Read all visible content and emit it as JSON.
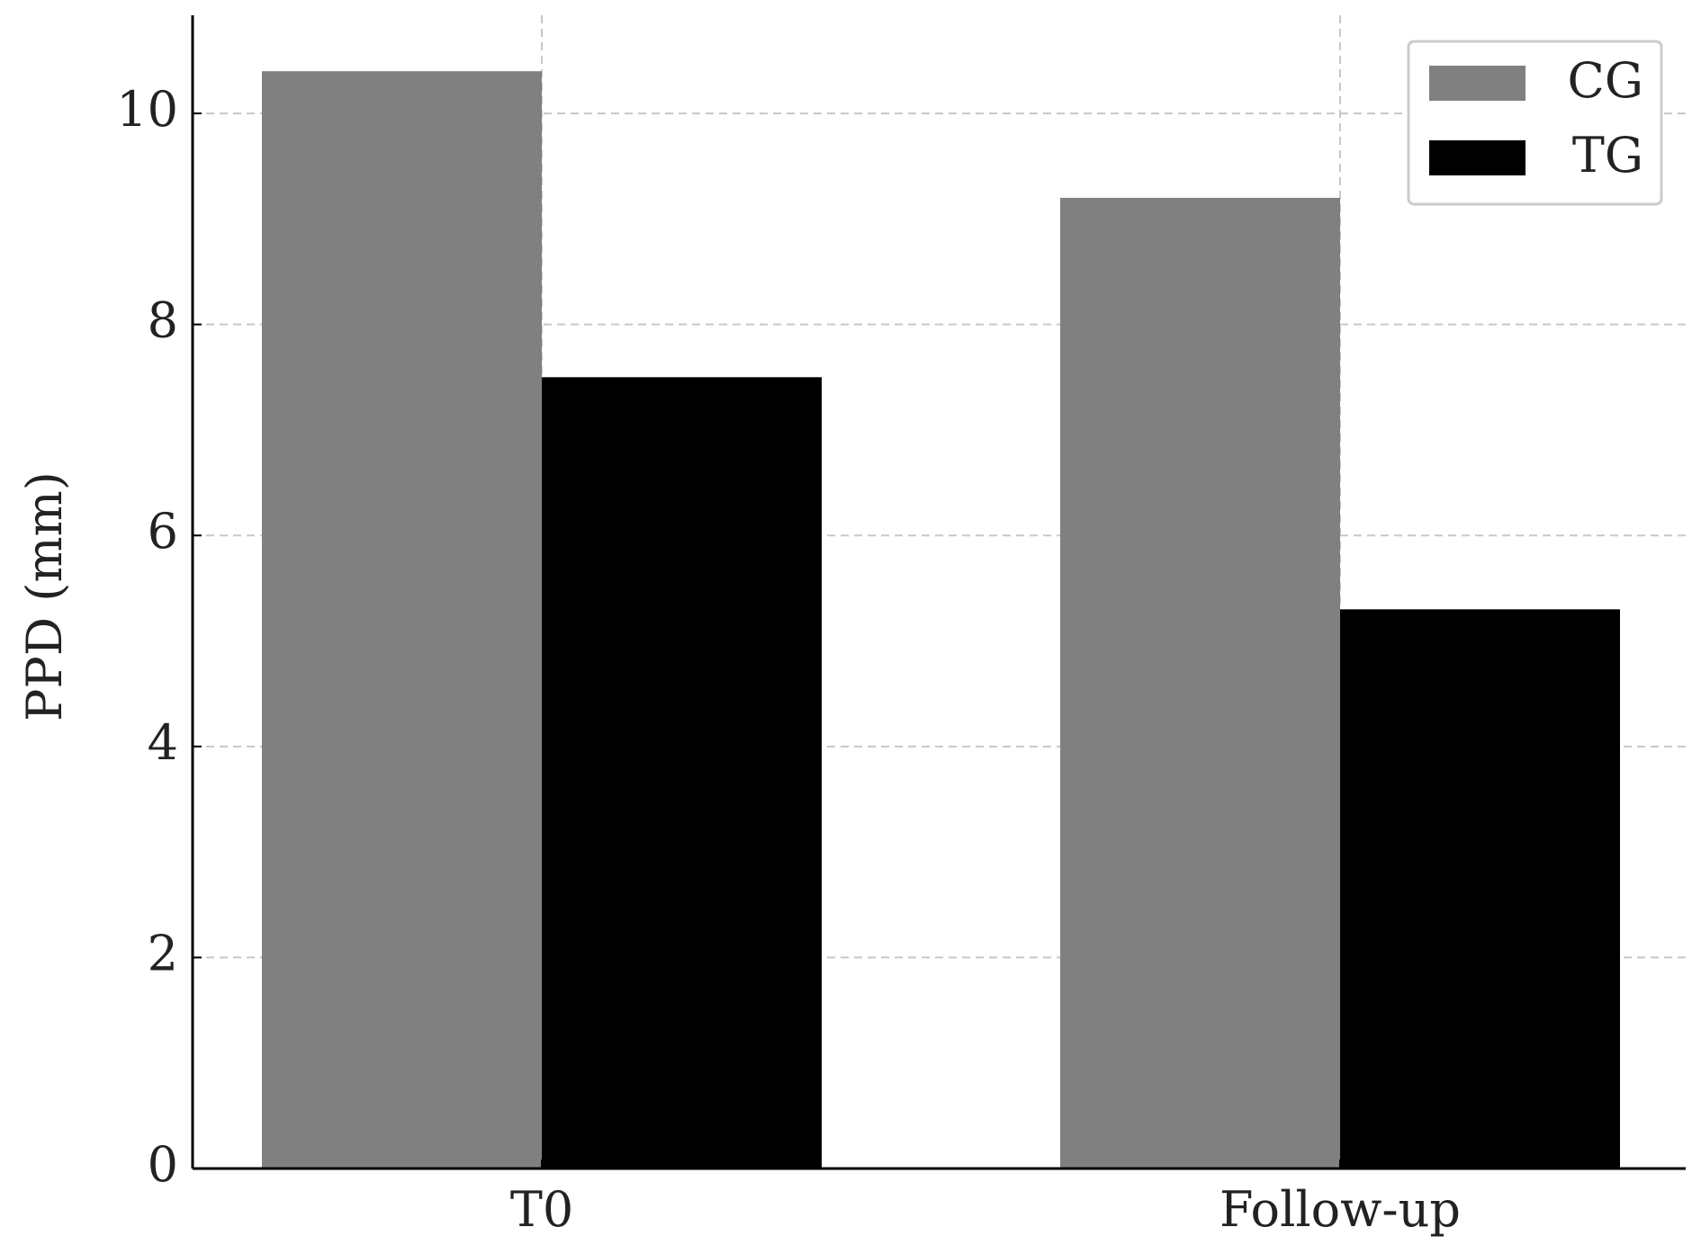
{
  "chart_data": {
    "type": "bar",
    "y_label": "PPD (mm)",
    "categories": [
      "T0",
      "Follow-up"
    ],
    "series": [
      {
        "name": "CG",
        "color": "#808080",
        "values": [
          10.4,
          9.2
        ]
      },
      {
        "name": "TG",
        "color": "#000000",
        "values": [
          7.5,
          5.3
        ]
      }
    ],
    "ylim": [
      0,
      10.93
    ],
    "yticks": [
      0,
      2,
      4,
      6,
      8,
      10
    ],
    "grid": true,
    "legend": "upper right"
  }
}
